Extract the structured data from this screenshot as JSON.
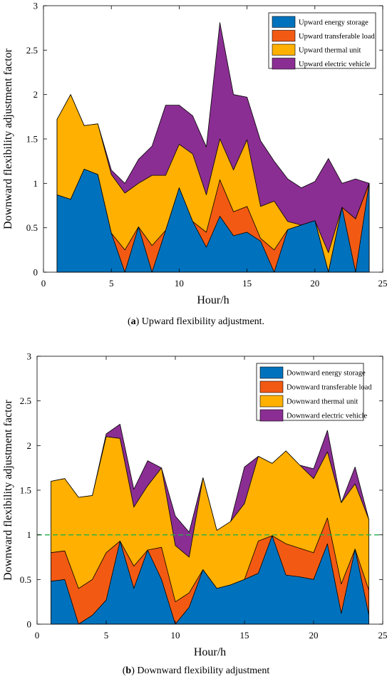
{
  "colors": {
    "storage": "#0072BD",
    "transferable": "#F25A13",
    "thermal": "#FFB000",
    "ev": "#8B2E93",
    "reference": "#22B04B"
  },
  "chart_data": [
    {
      "type": "area",
      "caption_letter": "a",
      "caption_text": " Upward flexibility adjustment.",
      "xlabel": "Hour/h",
      "ylabel": "Downward flexibility adjustment factor",
      "xlim": [
        0,
        25
      ],
      "ylim": [
        0,
        3
      ],
      "xticks": [
        0,
        5,
        10,
        15,
        20,
        25
      ],
      "yticks": [
        0,
        0.5,
        1,
        1.5,
        2,
        2.5,
        3
      ],
      "legend_position": "top-right",
      "x": [
        1,
        2,
        3,
        4,
        5,
        6,
        7,
        8,
        9,
        10,
        11,
        12,
        13,
        14,
        15,
        16,
        17,
        18,
        19,
        20,
        21,
        22,
        23,
        24
      ],
      "series": [
        {
          "name": "Upward energy storage",
          "color_key": "storage",
          "values": [
            0.87,
            0.82,
            1.16,
            1.1,
            0.44,
            0.0,
            0.51,
            0.0,
            0.47,
            0.95,
            0.57,
            0.28,
            0.63,
            0.41,
            0.45,
            0.35,
            0.0,
            0.48,
            0.53,
            0.58,
            0.0,
            0.73,
            0.0,
            1.0
          ]
        },
        {
          "name": "Upward transferable load",
          "color_key": "transferable",
          "values": [
            0.87,
            0.82,
            1.16,
            1.1,
            0.44,
            0.25,
            0.51,
            0.3,
            0.47,
            0.95,
            0.57,
            0.45,
            1.04,
            0.68,
            0.74,
            0.38,
            0.25,
            0.48,
            0.53,
            0.58,
            0.0,
            0.73,
            0.6,
            1.0
          ]
        },
        {
          "name": "Upward thermal unit",
          "color_key": "thermal",
          "values": [
            1.72,
            2.0,
            1.65,
            1.67,
            1.1,
            0.89,
            1.0,
            1.09,
            1.09,
            1.44,
            1.33,
            0.87,
            1.5,
            1.15,
            1.49,
            0.74,
            0.8,
            0.57,
            0.53,
            0.58,
            0.22,
            0.73,
            0.6,
            1.0
          ]
        },
        {
          "name": "Upward electric vehicle",
          "color_key": "ev",
          "values": [
            1.72,
            2.0,
            1.65,
            1.67,
            1.15,
            1.0,
            1.27,
            1.42,
            1.88,
            1.88,
            1.76,
            1.41,
            2.81,
            2.0,
            1.97,
            1.48,
            1.25,
            1.05,
            0.95,
            1.02,
            1.28,
            1.0,
            1.05,
            1.0
          ]
        }
      ]
    },
    {
      "type": "area",
      "caption_letter": "b",
      "caption_text": " Downward flexibility adjustment",
      "xlabel": "Hour/h",
      "ylabel": "Downward flexibility adjustment factor",
      "xlim": [
        0,
        25
      ],
      "ylim": [
        0,
        3
      ],
      "xticks": [
        0,
        5,
        10,
        15,
        20,
        25
      ],
      "yticks": [
        0,
        0.5,
        1,
        1.5,
        2,
        2.5,
        3
      ],
      "legend_position": "top-right",
      "reference_line": 1.0,
      "x": [
        1,
        2,
        3,
        4,
        5,
        6,
        7,
        8,
        9,
        10,
        11,
        12,
        13,
        14,
        15,
        16,
        17,
        18,
        19,
        20,
        21,
        22,
        23,
        24
      ],
      "series": [
        {
          "name": "Downward energy storage",
          "color_key": "storage",
          "values": [
            0.48,
            0.5,
            0.0,
            0.1,
            0.27,
            0.93,
            0.4,
            0.83,
            0.5,
            0.0,
            0.19,
            0.61,
            0.4,
            0.44,
            0.5,
            0.57,
            0.99,
            0.55,
            0.53,
            0.5,
            0.9,
            0.12,
            0.84,
            0.1
          ]
        },
        {
          "name": "Downward transferable load",
          "color_key": "transferable",
          "values": [
            0.8,
            0.82,
            0.4,
            0.5,
            0.8,
            0.93,
            0.65,
            0.83,
            0.86,
            0.25,
            0.35,
            0.61,
            0.4,
            0.44,
            0.5,
            0.93,
            0.99,
            0.9,
            0.85,
            0.8,
            1.19,
            0.45,
            0.84,
            0.38
          ]
        },
        {
          "name": "Downward thermal unit",
          "color_key": "thermal",
          "values": [
            1.6,
            1.63,
            1.42,
            1.44,
            2.1,
            2.08,
            1.31,
            1.55,
            1.75,
            0.88,
            0.75,
            1.64,
            1.05,
            1.15,
            1.35,
            1.88,
            1.8,
            1.94,
            1.78,
            1.63,
            1.93,
            1.36,
            1.57,
            1.17
          ]
        },
        {
          "name": "Downward electric vehicle",
          "color_key": "ev",
          "values": [
            1.6,
            1.63,
            1.42,
            1.44,
            2.13,
            2.24,
            1.51,
            1.83,
            1.75,
            1.21,
            1.03,
            1.64,
            1.05,
            1.15,
            1.76,
            1.88,
            1.8,
            1.94,
            1.78,
            1.74,
            2.17,
            1.36,
            1.76,
            1.17
          ]
        }
      ]
    }
  ]
}
